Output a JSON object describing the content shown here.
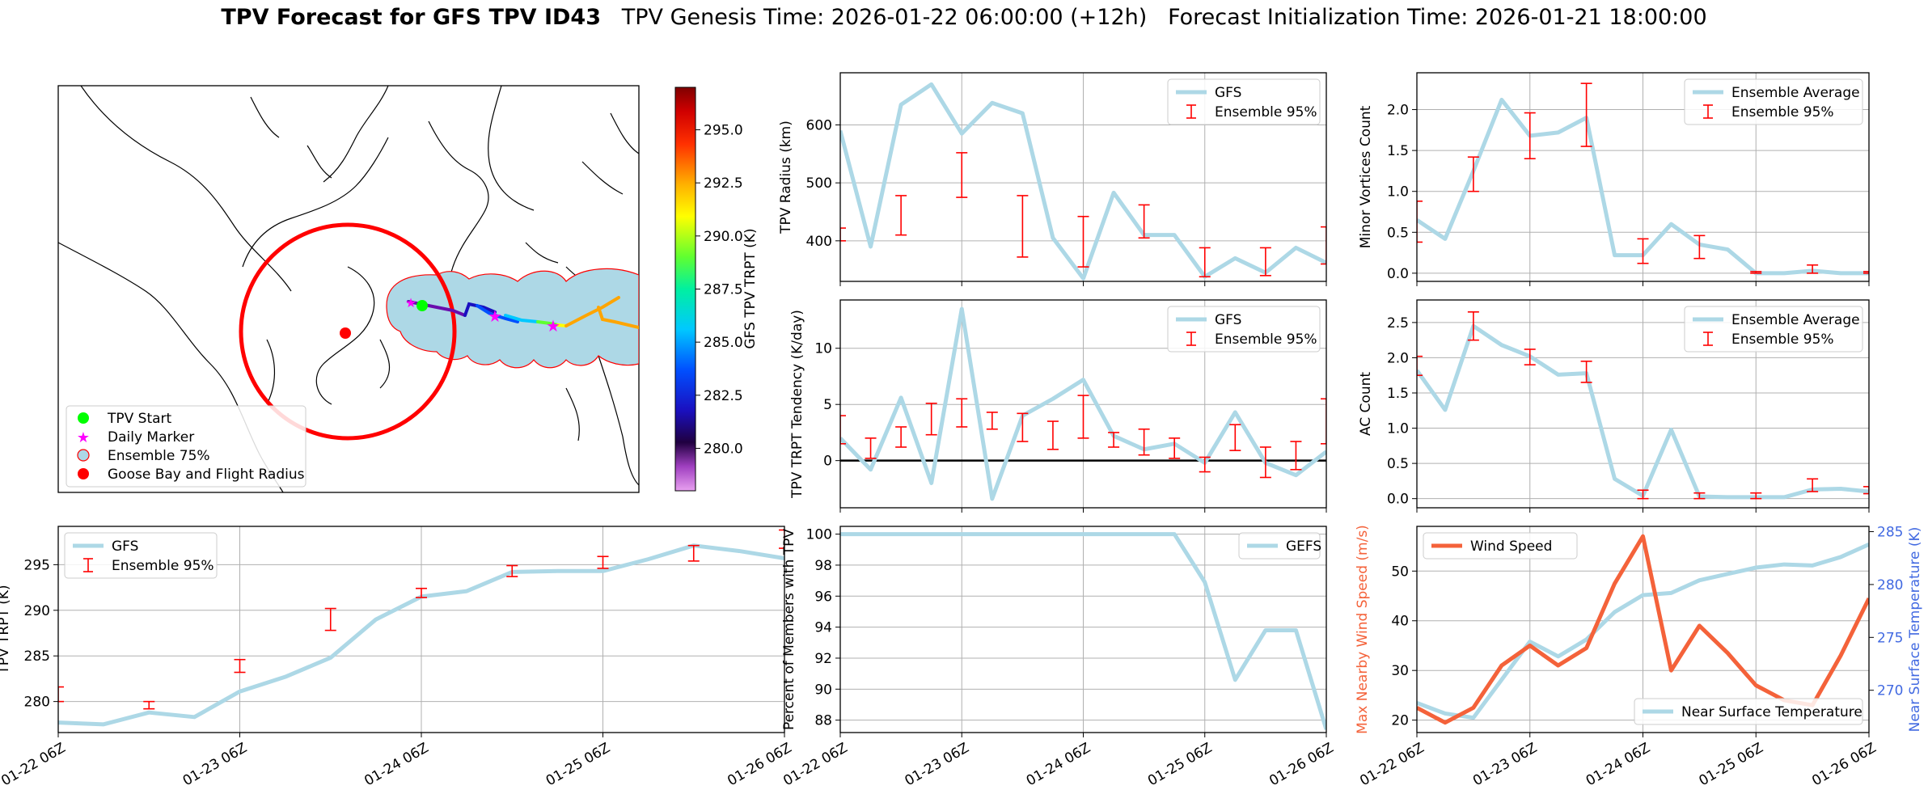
{
  "title": {
    "bold": "TPV Forecast for GFS TPV ID43",
    "genesis": "TPV Genesis Time: 2026-01-22 06:00:00 (+12h)",
    "init": "Forecast Initialization Time: 2026-01-21 18:00:00"
  },
  "colors": {
    "line": "#add8e6",
    "error": "#ff0000",
    "wind": "#f4623a",
    "temp_axis": "#4169e1",
    "zero_line": "#000000"
  },
  "chart_data": [
    {
      "id": "map",
      "type": "map",
      "legend": [
        "TPV Start",
        "Daily Marker",
        "Ensemble 75%",
        "Goose Bay and Flight Radius"
      ],
      "colorbar": {
        "label": "GFS TPV TRPT (K)",
        "ticks": [
          280.0,
          282.5,
          285.0,
          287.5,
          290.0,
          292.5,
          295.0
        ],
        "tick_labels": [
          "280.0",
          "282.5",
          "285.0",
          "287.5",
          "290.0",
          "292.5",
          "295.0"
        ],
        "range": [
          278.0,
          297.0
        ]
      }
    },
    {
      "id": "radius",
      "type": "line",
      "ylabel": "TPV Radius (km)",
      "ylim": [
        330,
        690
      ],
      "yticks": [
        400,
        500,
        600
      ],
      "x": [
        0,
        1,
        2,
        3,
        4,
        5,
        6,
        7,
        8,
        9,
        10,
        11,
        12,
        13,
        14,
        15,
        16
      ],
      "series": [
        {
          "name": "GFS",
          "values": [
            590,
            390,
            635,
            670,
            585,
            638,
            620,
            405,
            335,
            483,
            410,
            410,
            338,
            370,
            345,
            388,
            362
          ]
        }
      ],
      "errorbars": {
        "name": "Ensemble 95%",
        "x": [
          0,
          2,
          4,
          6,
          8,
          10,
          12,
          14,
          16
        ],
        "low": [
          400,
          410,
          475,
          372,
          355,
          405,
          338,
          340,
          360
        ],
        "high": [
          422,
          478,
          552,
          478,
          442,
          462,
          388,
          388,
          424
        ]
      },
      "legend": [
        "GFS",
        "Ensemble 95%"
      ]
    },
    {
      "id": "minor",
      "type": "line",
      "ylabel": "Minor Vortices Count",
      "ylim": [
        -0.1,
        2.45
      ],
      "yticks": [
        0.0,
        0.5,
        1.0,
        1.5,
        2.0
      ],
      "x": [
        0,
        1,
        2,
        3,
        4,
        5,
        6,
        7,
        8,
        9,
        10,
        11,
        12,
        13,
        14,
        15,
        16
      ],
      "series": [
        {
          "name": "Ensemble Average",
          "values": [
            0.65,
            0.42,
            1.25,
            2.12,
            1.68,
            1.72,
            1.9,
            0.22,
            0.22,
            0.6,
            0.35,
            0.29,
            0.0,
            0.0,
            0.03,
            0.0,
            0.0
          ]
        }
      ],
      "errorbars": {
        "name": "Ensemble 95%",
        "x": [
          0,
          2,
          4,
          6,
          8,
          10,
          12,
          14,
          16
        ],
        "low": [
          0.38,
          1.0,
          1.4,
          1.55,
          0.12,
          0.18,
          0.0,
          0.0,
          0.0
        ],
        "high": [
          0.88,
          1.42,
          1.96,
          2.32,
          0.42,
          0.46,
          0.02,
          0.1,
          0.02
        ]
      },
      "legend": [
        "Ensemble Average",
        "Ensemble 95%"
      ]
    },
    {
      "id": "tendency",
      "type": "line",
      "ylabel": "TPV TRPT Tendency (K/day)",
      "ylim": [
        -4.2,
        14.3
      ],
      "yticks": [
        0,
        5,
        10
      ],
      "zero_line": 0,
      "x": [
        0,
        1,
        2,
        3,
        4,
        5,
        6,
        7,
        8,
        9,
        10,
        11,
        12,
        13,
        14,
        15,
        16
      ],
      "series": [
        {
          "name": "GFS",
          "values": [
            2.0,
            -0.8,
            5.6,
            -2.0,
            13.5,
            -3.4,
            4.0,
            5.5,
            7.2,
            2.2,
            1.0,
            1.5,
            -0.2,
            4.3,
            -0.2,
            -1.3,
            0.8
          ]
        }
      ],
      "errorbars": {
        "name": "Ensemble 95%",
        "x": [
          0,
          1,
          2,
          3,
          4,
          5,
          6,
          7,
          8,
          9,
          10,
          11,
          12,
          13,
          14,
          15,
          16
        ],
        "low": [
          1.5,
          0.2,
          1.2,
          2.3,
          3.0,
          2.8,
          1.7,
          1.0,
          2.0,
          1.2,
          0.5,
          0.2,
          -1.0,
          0.9,
          -1.5,
          -0.8,
          1.5
        ],
        "high": [
          4.0,
          2.0,
          3.0,
          5.1,
          5.5,
          4.3,
          4.2,
          3.5,
          5.8,
          2.5,
          2.8,
          2.0,
          0.3,
          3.2,
          1.2,
          1.7,
          5.5
        ]
      },
      "legend": [
        "GFS",
        "Ensemble 95%"
      ]
    },
    {
      "id": "ac",
      "type": "line",
      "ylabel": "AC Count",
      "ylim": [
        -0.13,
        2.82
      ],
      "yticks": [
        0.0,
        0.5,
        1.0,
        1.5,
        2.0,
        2.5
      ],
      "x": [
        0,
        1,
        2,
        3,
        4,
        5,
        6,
        7,
        8,
        9,
        10,
        11,
        12,
        13,
        14,
        15,
        16
      ],
      "series": [
        {
          "name": "Ensemble Average",
          "values": [
            1.82,
            1.26,
            2.45,
            2.18,
            2.02,
            1.76,
            1.78,
            0.28,
            0.04,
            0.98,
            0.03,
            0.02,
            0.02,
            0.02,
            0.13,
            0.14,
            0.1
          ]
        }
      ],
      "errorbars": {
        "name": "Ensemble 95%",
        "x": [
          0,
          2,
          4,
          6,
          8,
          10,
          12,
          14,
          16
        ],
        "low": [
          1.75,
          2.25,
          1.9,
          1.65,
          0.0,
          0.0,
          0.0,
          0.1,
          0.07
        ],
        "high": [
          2.02,
          2.65,
          2.12,
          1.95,
          0.12,
          0.08,
          0.08,
          0.28,
          0.17
        ]
      },
      "legend": [
        "Ensemble Average",
        "Ensemble 95%"
      ]
    },
    {
      "id": "trpt",
      "type": "line",
      "ylabel": "TPV TRPT (K)",
      "ylim": [
        276.6,
        299.2
      ],
      "yticks": [
        280,
        285,
        290,
        295
      ],
      "x": [
        0,
        1,
        2,
        3,
        4,
        5,
        6,
        7,
        8,
        9,
        10,
        11,
        12,
        13,
        14,
        15,
        16
      ],
      "series": [
        {
          "name": "GFS",
          "values": [
            277.7,
            277.5,
            278.8,
            278.3,
            281.1,
            282.7,
            284.8,
            289.0,
            291.5,
            292.1,
            294.2,
            294.3,
            294.3,
            295.6,
            297.1,
            296.5,
            295.7
          ]
        }
      ],
      "errorbars": {
        "name": "Ensemble 95%",
        "x": [
          0,
          2,
          4,
          6,
          8,
          10,
          12,
          14,
          16
        ],
        "low": [
          280.0,
          279.2,
          283.2,
          287.8,
          291.4,
          293.7,
          294.6,
          295.4,
          296.8
        ],
        "high": [
          281.6,
          280.0,
          284.6,
          290.2,
          292.4,
          294.9,
          295.9,
          297.1,
          298.8
        ]
      },
      "legend": [
        "GFS",
        "Ensemble 95%"
      ]
    },
    {
      "id": "percent",
      "type": "line",
      "ylabel": "Percent of Members with TPV",
      "ylim": [
        87.2,
        100.5
      ],
      "yticks": [
        88,
        90,
        92,
        94,
        96,
        98,
        100
      ],
      "x": [
        0,
        1,
        2,
        3,
        4,
        5,
        6,
        7,
        8,
        9,
        10,
        11,
        12,
        13,
        14,
        15,
        16
      ],
      "series": [
        {
          "name": "GEFS",
          "values": [
            100,
            100,
            100,
            100,
            100,
            100,
            100,
            100,
            100,
            100,
            100,
            100,
            96.9,
            90.6,
            93.8,
            93.8,
            87.4
          ]
        }
      ],
      "legend": [
        "GEFS"
      ]
    },
    {
      "id": "wind",
      "type": "line",
      "ylabel": "Max Nearby Wind Speed (m/s)",
      "y2label": "Near Surface Temperature (K)",
      "ylim": [
        17.5,
        59.0
      ],
      "yticks": [
        20,
        30,
        40,
        50
      ],
      "y2lim": [
        266.0,
        285.5
      ],
      "y2ticks": [
        270,
        275,
        280,
        285
      ],
      "x": [
        0,
        1,
        2,
        3,
        4,
        5,
        6,
        7,
        8,
        9,
        10,
        11,
        12,
        13,
        14,
        15,
        16
      ],
      "series": [
        {
          "name": "Wind Speed",
          "axis": "left",
          "values": [
            22.5,
            19.5,
            22.5,
            31.0,
            35.0,
            31.0,
            34.5,
            47.5,
            57.0,
            30.0,
            39.0,
            33.5,
            27.0,
            24.0,
            23.0,
            33.0,
            44.5
          ]
        },
        {
          "name": "Near Surface Temperature",
          "axis": "right",
          "values": [
            268.8,
            267.8,
            267.4,
            271.0,
            274.6,
            273.2,
            274.8,
            277.4,
            279.0,
            279.2,
            280.4,
            281.0,
            281.6,
            281.9,
            281.8,
            282.6,
            283.8
          ]
        }
      ],
      "legend": [
        "Wind Speed",
        "Near Surface Temperature"
      ]
    }
  ],
  "xaxis": {
    "ticks": [
      0,
      4,
      8,
      12,
      16
    ],
    "tick_labels": [
      "01-22 06Z",
      "01-23 06Z",
      "01-24 06Z",
      "01-25 06Z",
      "01-26 06Z"
    ],
    "range": [
      0,
      16
    ]
  }
}
